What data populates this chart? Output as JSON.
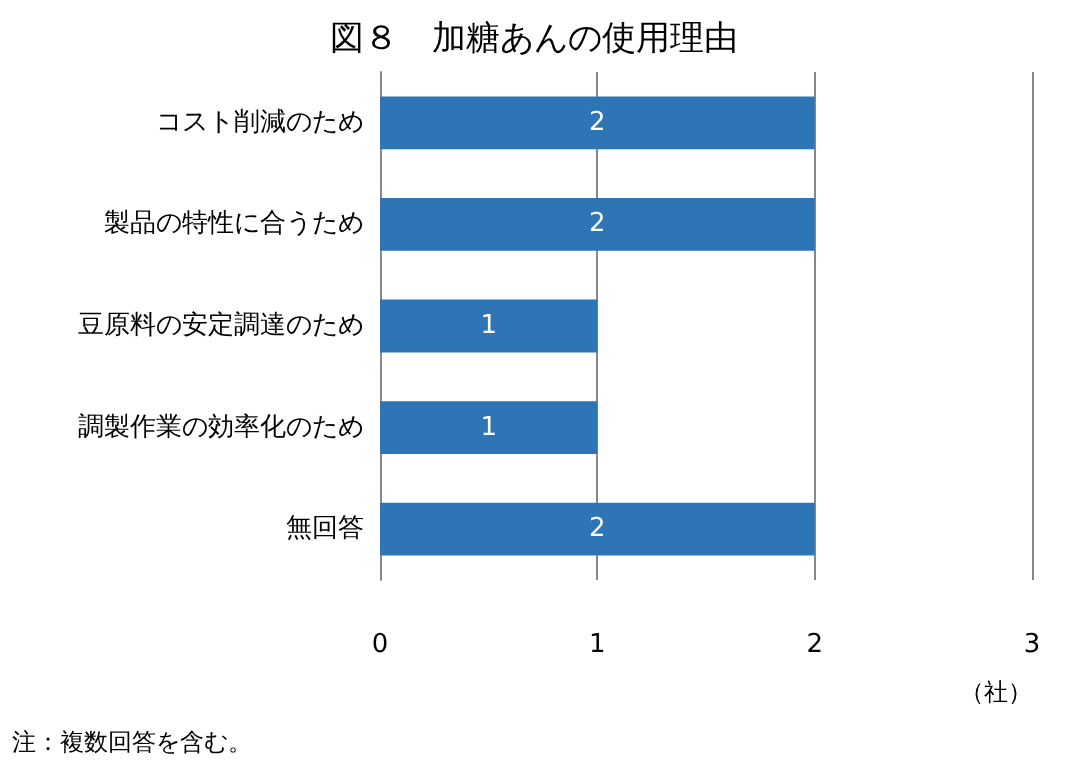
{
  "chart_data": {
    "type": "bar",
    "orientation": "horizontal",
    "title": "図８　加糖あんの使用理由",
    "xlabel": "（社）",
    "categories": [
      "コスト削減のため",
      "製品の特性に合うため",
      "豆原料の安定調達のため",
      "調製作業の効率化のため",
      "無回答"
    ],
    "values": [
      2,
      2,
      1,
      1,
      2
    ],
    "color": "#2e75b6",
    "xlim": [
      0,
      3
    ],
    "xticks": [
      0,
      1,
      2,
      3
    ],
    "grid": "x",
    "data_labels": true,
    "annotations": [
      "注：複数回答を含む。"
    ]
  }
}
